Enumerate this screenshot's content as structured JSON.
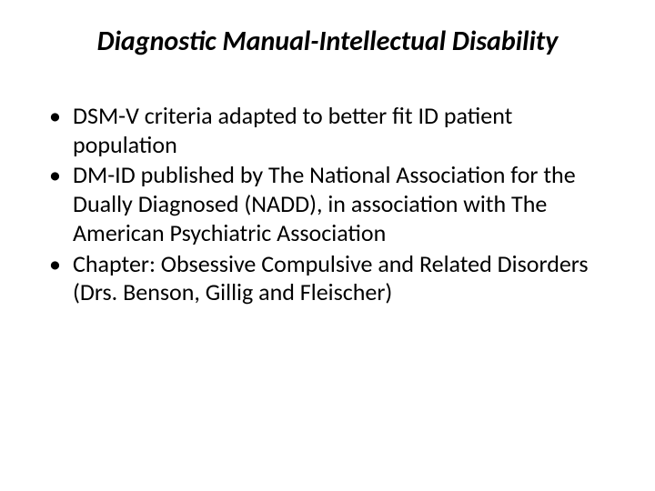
{
  "title": "Diagnostic Manual-Intellectual Disability",
  "bullets": [
    "DSM-V criteria adapted to better fit ID patient population",
    "DM-ID published by The National Association for the Dually Diagnosed (NADD), in association with The American Psychiatric Association",
    "Chapter: Obsessive Compulsive and Related Disorders (Drs. Benson, Gillig and Fleischer)"
  ],
  "colors": {
    "background": "#ffffff",
    "text": "#000000"
  },
  "typography": {
    "title_fontsize": 30,
    "title_weight": "700",
    "title_style": "italic",
    "bullet_fontsize": 26,
    "font_family": "Calibri"
  }
}
